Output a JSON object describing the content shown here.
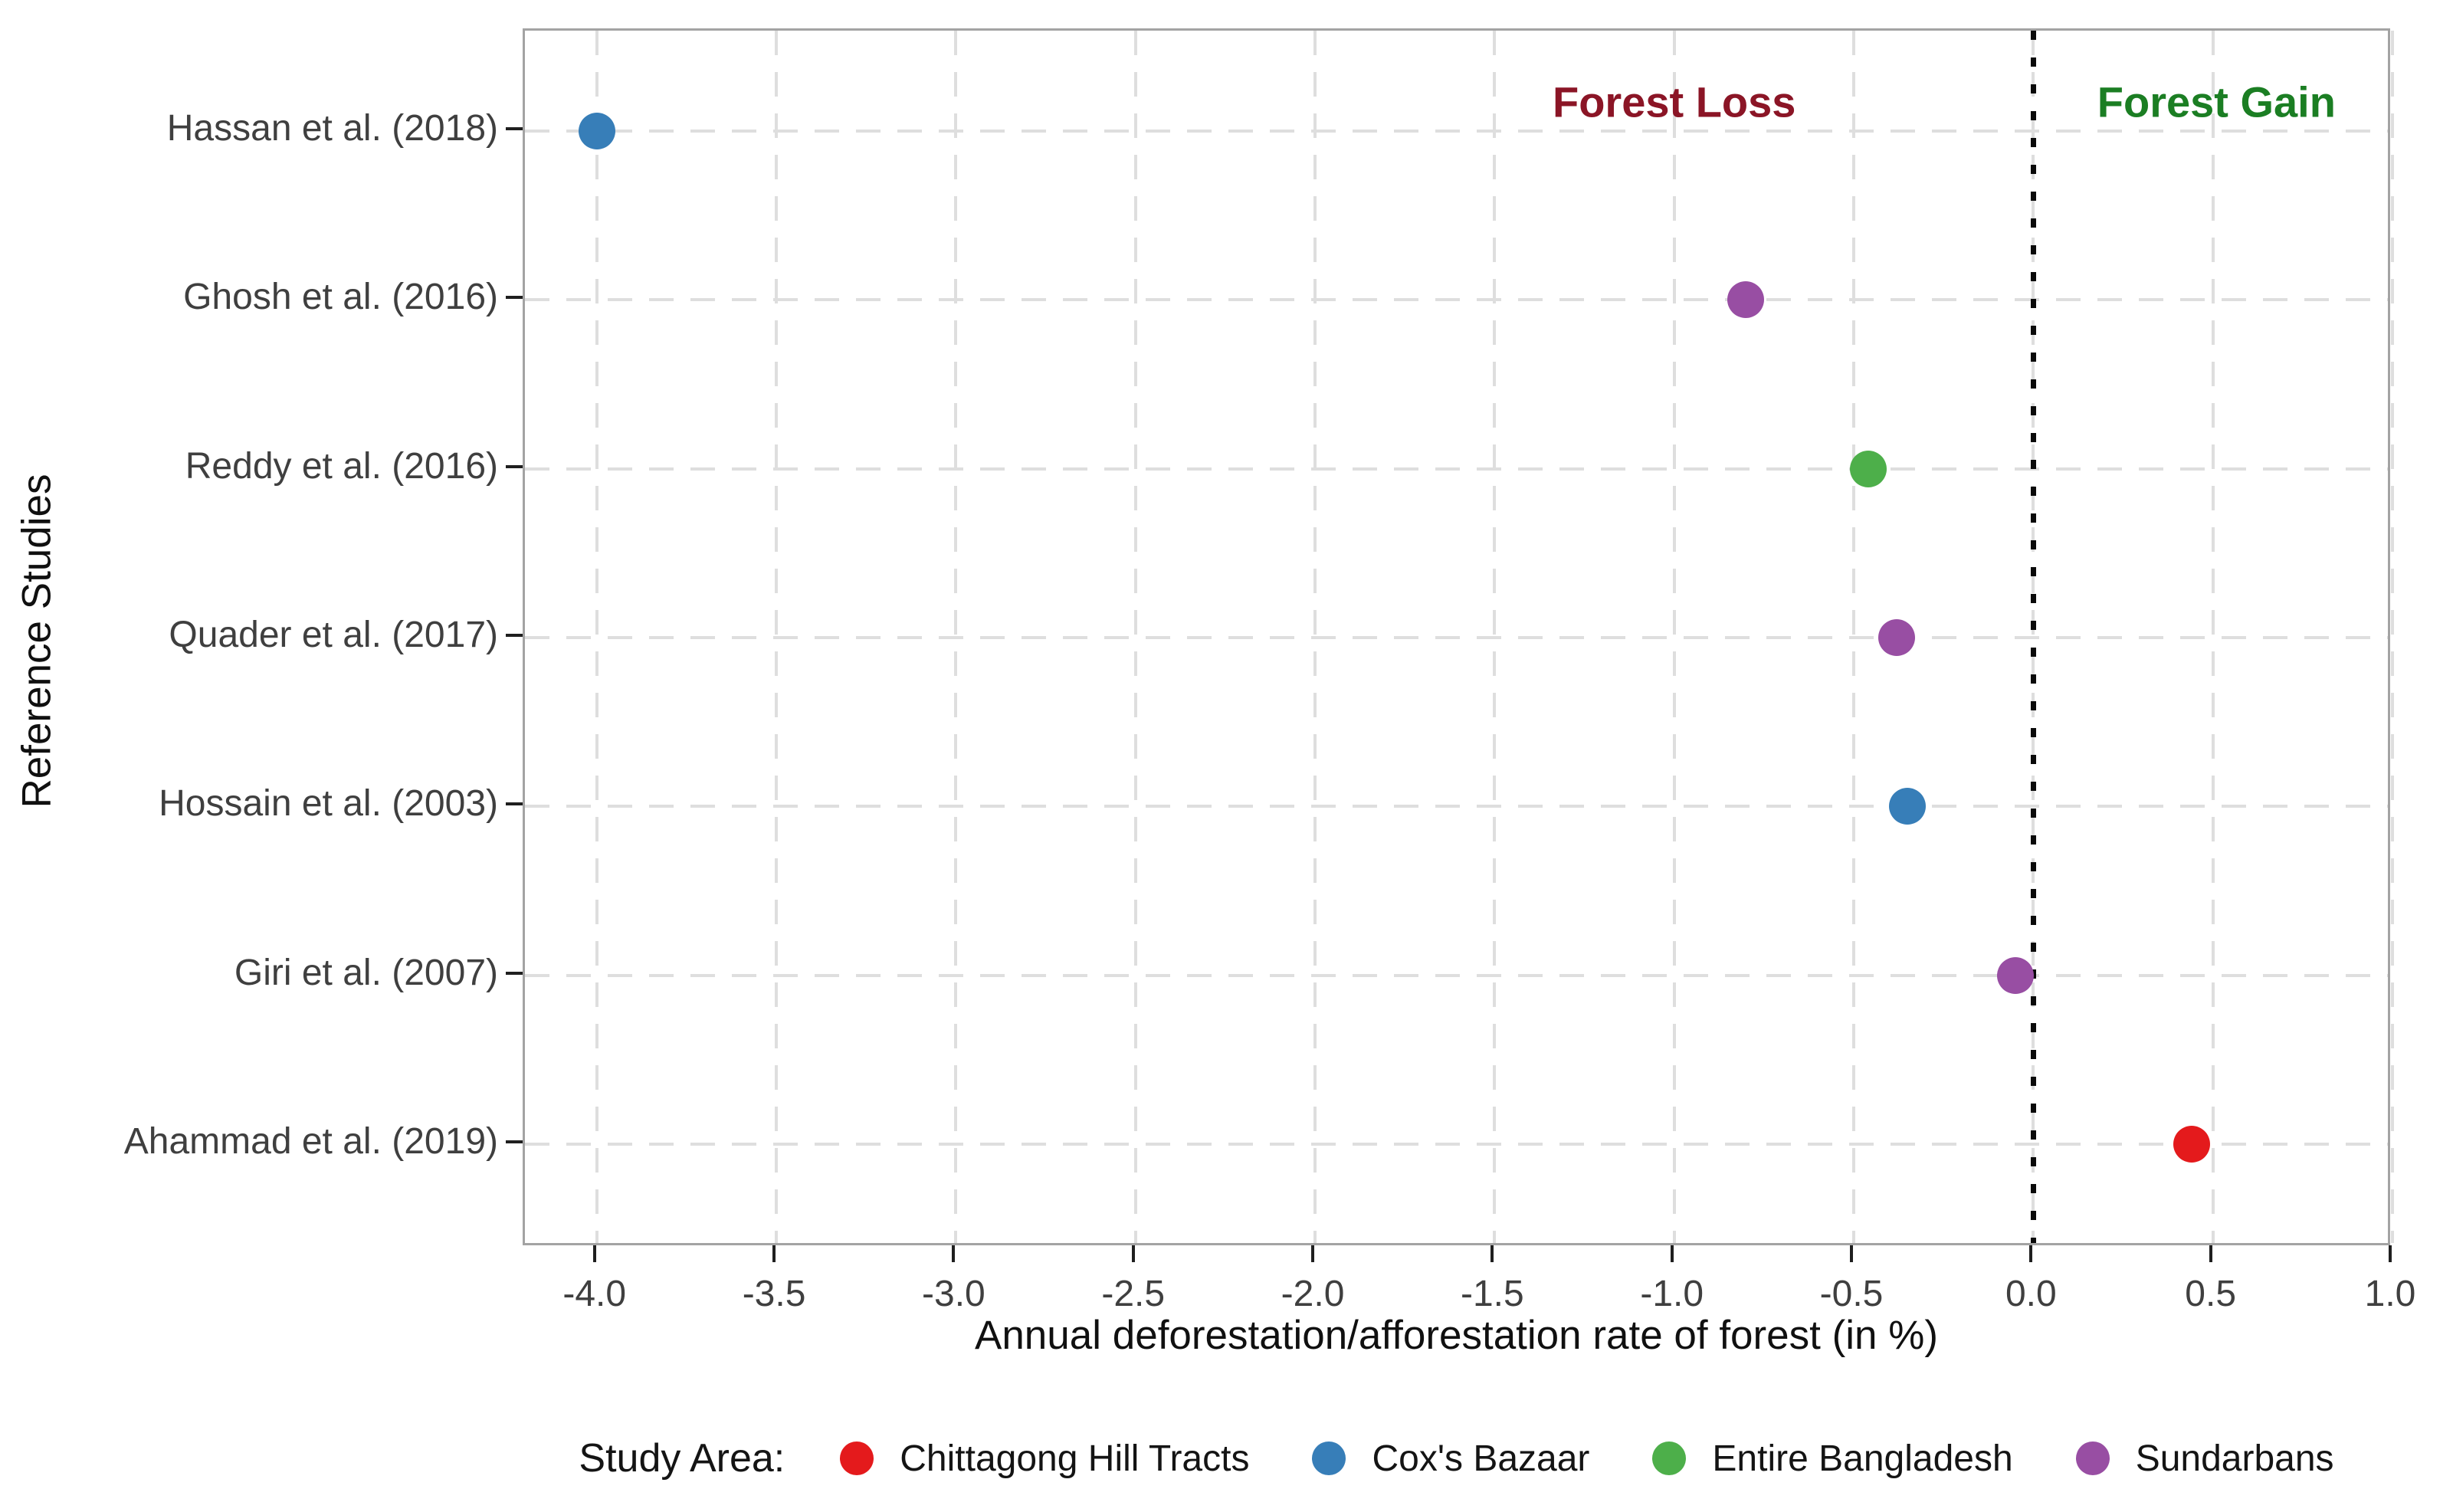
{
  "chart_data": {
    "type": "scatter",
    "orientation": "horizontal_dot_plot",
    "title": "",
    "xlabel": "Annual deforestation/afforestation rate of forest (in %)",
    "ylabel": "Reference Studies",
    "xlim": [
      -4.2,
      1.0
    ],
    "x_ticks": [
      -4.0,
      -3.5,
      -3.0,
      -2.5,
      -2.0,
      -1.5,
      -1.0,
      -0.5,
      0.0,
      0.5,
      1.0
    ],
    "grid": {
      "show": true,
      "style": "dashed",
      "color": "#dedede"
    },
    "categories": [
      "Hassan et al. (2018)",
      "Ghosh et al. (2016)",
      "Reddy et al. (2016)",
      "Quader et al. (2017)",
      "Hossain et al. (2003)",
      "Giri et al. (2007)",
      "Ahammad et al. (2019)"
    ],
    "points": [
      {
        "study": "Hassan et al. (2018)",
        "value": -4.0,
        "area": "Cox's Bazaar"
      },
      {
        "study": "Ghosh et al. (2016)",
        "value": -0.8,
        "area": "Sundarbans"
      },
      {
        "study": "Reddy et al. (2016)",
        "value": -0.46,
        "area": "Entire Bangladesh"
      },
      {
        "study": "Quader et al. (2017)",
        "value": -0.38,
        "area": "Sundarbans"
      },
      {
        "study": "Hossain et al. (2003)",
        "value": -0.35,
        "area": "Cox's Bazaar"
      },
      {
        "study": "Giri et al. (2007)",
        "value": -0.05,
        "area": "Sundarbans"
      },
      {
        "study": "Ahammad et al. (2019)",
        "value": 0.44,
        "area": "Chittagong Hill Tracts"
      }
    ],
    "zero_line": {
      "x": 0.0,
      "style": "dotted",
      "color": "#0a0a0a"
    },
    "annotations": [
      {
        "text": "Forest Loss",
        "x": -1.0,
        "color": "#8b1526"
      },
      {
        "text": "Forest Gain",
        "x": 0.51,
        "color": "#1b7e23"
      }
    ],
    "area_colors": {
      "Chittagong Hill Tracts": "#e41a1c",
      "Cox's Bazaar": "#377eb8",
      "Entire Bangladesh": "#4daf4a",
      "Sundarbans": "#984ea3"
    },
    "legend": {
      "title": "Study Area:",
      "position": "bottom",
      "entries": [
        {
          "label": "Chittagong Hill Tracts",
          "color": "#e41a1c"
        },
        {
          "label": "Cox's Bazaar",
          "color": "#377eb8"
        },
        {
          "label": "Entire Bangladesh",
          "color": "#4daf4a"
        },
        {
          "label": "Sundarbans",
          "color": "#984ea3"
        }
      ]
    }
  }
}
